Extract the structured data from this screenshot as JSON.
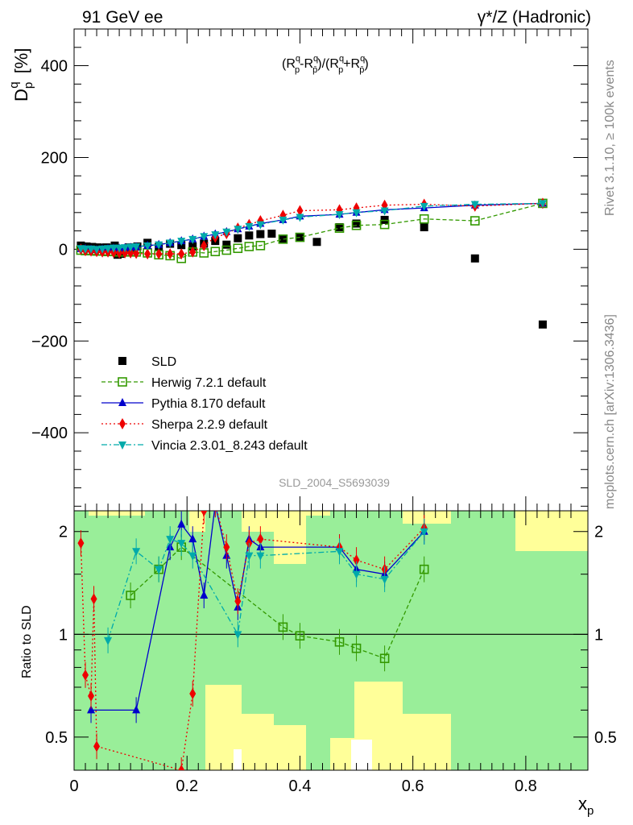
{
  "header": {
    "left": "91 GeV ee",
    "right": "γ*/Z (Hadronic)"
  },
  "side_labels": {
    "rivet": "Rivet 3.1.10, ≥ 100k events",
    "mcplots": "mcplots.cern.ch [arXiv:1306.3436]"
  },
  "chart_data": [
    {
      "type": "scatter",
      "panel": "main",
      "title": "",
      "formula": "(R_p^q − R_p̄^q)/(R_p^q + R_p̄^q)",
      "ylabel": "D_p^q [%]",
      "analysis_id": "SLD_2004_S5693039",
      "xlim": [
        0,
        0.91
      ],
      "ylim": [
        -570,
        480
      ],
      "yticks": [
        -400,
        -200,
        0,
        200,
        400
      ],
      "legend_position": "lower-left",
      "series": [
        {
          "name": "SLD",
          "color": "#000000",
          "marker": "square-filled",
          "x": [
            0.012,
            0.017,
            0.022,
            0.027,
            0.032,
            0.037,
            0.042,
            0.047,
            0.052,
            0.057,
            0.062,
            0.067,
            0.072,
            0.077,
            0.082,
            0.087,
            0.092,
            0.097,
            0.102,
            0.112,
            0.13,
            0.15,
            0.17,
            0.19,
            0.21,
            0.23,
            0.25,
            0.27,
            0.29,
            0.31,
            0.33,
            0.35,
            0.37,
            0.4,
            0.43,
            0.47,
            0.5,
            0.55,
            0.62,
            0.71,
            0.83
          ],
          "y": [
            8,
            6,
            6,
            4,
            5,
            3,
            4,
            2,
            3,
            4,
            2,
            3,
            8,
            -12,
            -10,
            -3,
            1,
            4,
            -2,
            6,
            14,
            5,
            12,
            9,
            6,
            12,
            18,
            10,
            24,
            30,
            33,
            34,
            22,
            26,
            16,
            48,
            56,
            64,
            48,
            -20,
            -164
          ]
        },
        {
          "name": "Herwig 7.2.1 default",
          "color": "#339900",
          "marker": "square-open",
          "line": "dashed",
          "x": [
            0.012,
            0.02,
            0.03,
            0.04,
            0.05,
            0.06,
            0.07,
            0.08,
            0.09,
            0.1,
            0.11,
            0.13,
            0.15,
            0.17,
            0.19,
            0.21,
            0.23,
            0.25,
            0.27,
            0.29,
            0.31,
            0.33,
            0.37,
            0.4,
            0.47,
            0.5,
            0.55,
            0.62,
            0.71,
            0.83
          ],
          "y": [
            -2,
            -3,
            -3,
            -4,
            -4,
            -5,
            -5,
            -6,
            -6,
            -5,
            -6,
            -8,
            -12,
            -14,
            -20,
            -6,
            -8,
            -5,
            -2,
            2,
            6,
            8,
            22,
            26,
            46,
            52,
            54,
            66,
            62,
            100
          ]
        },
        {
          "name": "Pythia 8.170 default",
          "color": "#0000cc",
          "marker": "triangle-up",
          "line": "solid",
          "x": [
            0.012,
            0.02,
            0.03,
            0.04,
            0.05,
            0.06,
            0.07,
            0.08,
            0.09,
            0.1,
            0.11,
            0.13,
            0.15,
            0.17,
            0.19,
            0.21,
            0.23,
            0.25,
            0.27,
            0.29,
            0.31,
            0.33,
            0.37,
            0.4,
            0.47,
            0.5,
            0.55,
            0.62,
            0.71,
            0.83
          ],
          "y": [
            1,
            1,
            0,
            -1,
            0,
            1,
            2,
            2,
            3,
            4,
            5,
            8,
            10,
            14,
            18,
            22,
            28,
            33,
            38,
            44,
            50,
            56,
            64,
            72,
            76,
            80,
            86,
            90,
            96,
            100
          ]
        },
        {
          "name": "Sherpa 2.2.9 default",
          "color": "#ee0000",
          "marker": "diamond",
          "line": "dotted",
          "x": [
            0.012,
            0.02,
            0.03,
            0.04,
            0.05,
            0.06,
            0.07,
            0.08,
            0.09,
            0.1,
            0.11,
            0.13,
            0.15,
            0.17,
            0.19,
            0.21,
            0.23,
            0.25,
            0.27,
            0.29,
            0.31,
            0.33,
            0.37,
            0.4,
            0.47,
            0.5,
            0.55,
            0.62,
            0.71,
            0.83
          ],
          "y": [
            0,
            -3,
            -4,
            -5,
            -6,
            -6,
            -7,
            -8,
            -8,
            -8,
            -9,
            -10,
            -10,
            -10,
            -10,
            -6,
            8,
            26,
            34,
            46,
            54,
            62,
            74,
            84,
            86,
            90,
            96,
            98,
            94,
            100
          ]
        },
        {
          "name": "Vincia 2.3.01_8.243 default",
          "color": "#00aaaa",
          "marker": "triangle-down",
          "line": "dashdot",
          "x": [
            0.012,
            0.02,
            0.03,
            0.04,
            0.05,
            0.06,
            0.07,
            0.08,
            0.09,
            0.1,
            0.11,
            0.13,
            0.15,
            0.17,
            0.19,
            0.21,
            0.23,
            0.25,
            0.27,
            0.29,
            0.31,
            0.33,
            0.37,
            0.4,
            0.47,
            0.5,
            0.55,
            0.62,
            0.71,
            0.83
          ],
          "y": [
            2,
            1,
            1,
            0,
            1,
            2,
            3,
            3,
            4,
            5,
            6,
            8,
            10,
            14,
            18,
            22,
            28,
            32,
            38,
            44,
            50,
            54,
            64,
            70,
            76,
            80,
            84,
            94,
            98,
            100
          ]
        }
      ]
    },
    {
      "type": "line",
      "panel": "ratio",
      "ylabel": "Ratio to SLD",
      "xlabel": "x_p",
      "xlim": [
        0,
        0.91
      ],
      "ylim": [
        0.4,
        2.3
      ],
      "yscale": "log",
      "yticks": [
        0.5,
        1,
        2
      ],
      "xticks": [
        0,
        0.2,
        0.4,
        0.6,
        0.8
      ],
      "reference_line": 1,
      "uncertainty_bands": {
        "inner_color": "#99ee99",
        "outer_color": "#ffff99"
      },
      "series": [
        {
          "name": "Herwig 7.2.1 default",
          "x": [
            0.1,
            0.15,
            0.19,
            0.37,
            0.4,
            0.47,
            0.5,
            0.55,
            0.62
          ],
          "y": [
            1.3,
            1.55,
            1.8,
            1.05,
            0.99,
            0.95,
            0.91,
            0.85,
            1.55
          ]
        },
        {
          "name": "Pythia 8.170 default",
          "x": [
            0.03,
            0.11,
            0.17,
            0.19,
            0.21,
            0.23,
            0.25,
            0.27,
            0.29,
            0.31,
            0.33,
            0.47,
            0.5,
            0.55,
            0.62
          ],
          "y": [
            0.6,
            0.6,
            1.8,
            2.1,
            1.9,
            1.3,
            2.4,
            1.7,
            1.2,
            1.9,
            1.8,
            1.8,
            1.55,
            1.5,
            2.0
          ]
        },
        {
          "name": "Sherpa 2.2.9 default",
          "x": [
            0.012,
            0.02,
            0.03,
            0.035,
            0.04,
            0.19,
            0.21,
            0.23,
            0.25,
            0.27,
            0.29,
            0.31,
            0.33,
            0.47,
            0.5,
            0.55,
            0.62
          ],
          "y": [
            1.85,
            0.76,
            0.66,
            1.27,
            0.47,
            0.4,
            0.67,
            2.3,
            2.4,
            1.8,
            1.25,
            1.85,
            1.9,
            1.8,
            1.65,
            1.55,
            2.05
          ]
        },
        {
          "name": "Vincia 2.3.01_8.243 default",
          "x": [
            0.06,
            0.11,
            0.15,
            0.17,
            0.19,
            0.21,
            0.29,
            0.31,
            0.33,
            0.47,
            0.5,
            0.55,
            0.62
          ],
          "y": [
            0.96,
            1.75,
            1.55,
            1.9,
            1.85,
            1.7,
            1.0,
            1.7,
            1.7,
            1.75,
            1.5,
            1.45,
            2.0
          ]
        }
      ]
    }
  ]
}
